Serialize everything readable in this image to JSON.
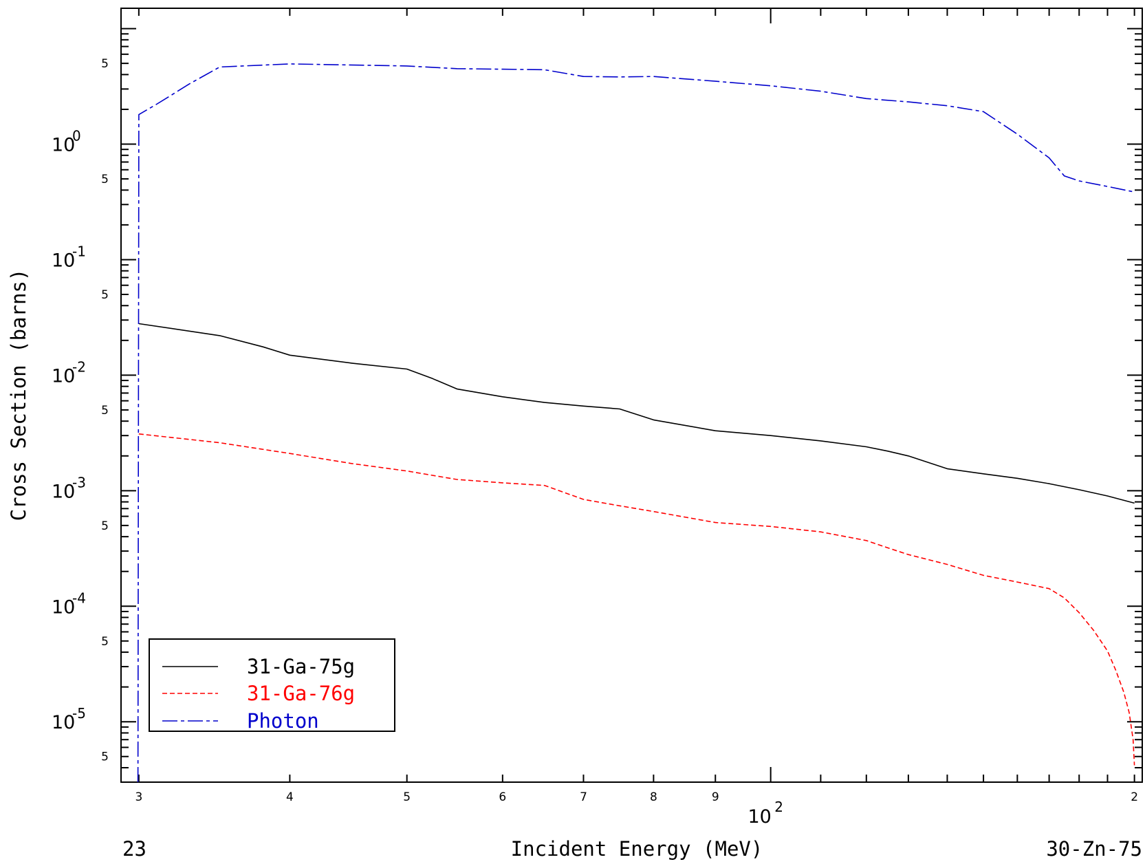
{
  "chart_data": {
    "type": "line",
    "xlabel": "Incident Energy (MeV)",
    "ylabel": "Cross Section (barns)",
    "x_scale": "log",
    "y_scale": "log",
    "xlim": [
      29,
      203
    ],
    "ylim": [
      3e-06,
      15
    ],
    "x_ticks": [
      {
        "value": 30,
        "label": "3"
      },
      {
        "value": 40,
        "label": "4"
      },
      {
        "value": 50,
        "label": "5"
      },
      {
        "value": 60,
        "label": "6"
      },
      {
        "value": 70,
        "label": "7"
      },
      {
        "value": 80,
        "label": "8"
      },
      {
        "value": 90,
        "label": "9"
      },
      {
        "value": 200,
        "label": "2"
      }
    ],
    "x_major_label": {
      "value": 100,
      "base": "10",
      "exponent": "2"
    },
    "y_major_ticks": [
      {
        "value": 1,
        "base": "10",
        "exponent": "0"
      },
      {
        "value": 0.1,
        "base": "10",
        "exponent": "-1"
      },
      {
        "value": 0.01,
        "base": "10",
        "exponent": "-2"
      },
      {
        "value": 0.001,
        "base": "10",
        "exponent": "-3"
      },
      {
        "value": 0.0001,
        "base": "10",
        "exponent": "-4"
      },
      {
        "value": 1e-05,
        "base": "10",
        "exponent": "-5"
      }
    ],
    "y_minor_labels": [
      {
        "value": 5,
        "label": "5"
      },
      {
        "value": 0.5,
        "label": "5"
      },
      {
        "value": 0.05,
        "label": "5"
      },
      {
        "value": 0.005,
        "label": "5"
      },
      {
        "value": 0.0005,
        "label": "5"
      },
      {
        "value": 5e-05,
        "label": "5"
      },
      {
        "value": 5e-06,
        "label": "5"
      }
    ],
    "series": [
      {
        "name": "31-Ga-75g",
        "color": "#000000",
        "dash": "solid",
        "x": [
          30,
          35,
          38,
          40,
          45,
          50,
          52.5,
          55,
          60,
          65,
          70,
          75,
          80,
          90,
          100,
          110,
          120,
          125,
          130,
          140,
          150,
          160,
          170,
          180,
          190,
          200
        ],
        "y": [
          0.0279,
          0.022,
          0.0176,
          0.0149,
          0.0127,
          0.0113,
          0.00935,
          0.0076,
          0.0065,
          0.0058,
          0.0054,
          0.0051,
          0.0041,
          0.0033,
          0.003,
          0.0027,
          0.0024,
          0.0022,
          0.002,
          0.00155,
          0.0014,
          0.00128,
          0.00115,
          0.00102,
          0.0009,
          0.00078
        ]
      },
      {
        "name": "31-Ga-76g",
        "color": "#ff0000",
        "dash": "dashed",
        "x": [
          30,
          35,
          40,
          45,
          50,
          55,
          60,
          65,
          70,
          75,
          80,
          90,
          100,
          110,
          120,
          125,
          130,
          140,
          150,
          160,
          170,
          175,
          180,
          185,
          190,
          193,
          196,
          198,
          199.5,
          200
        ],
        "y": [
          0.0031,
          0.0026,
          0.0021,
          0.00172,
          0.00148,
          0.00125,
          0.00117,
          0.00111,
          0.00084,
          0.00074,
          0.00066,
          0.00053,
          0.00049,
          0.00044,
          0.00037,
          0.00032,
          0.00028,
          0.00023,
          0.000185,
          0.000162,
          0.000142,
          0.000118,
          8.8e-05,
          6.2e-05,
          4.1e-05,
          2.8e-05,
          1.8e-05,
          1.2e-05,
          7e-06,
          4.2e-06
        ]
      },
      {
        "name": "Photon",
        "color": "#0000cc",
        "dash": "dashdot",
        "x": [
          29.95,
          30,
          31,
          32,
          33,
          35,
          40,
          50,
          55,
          60,
          65,
          70,
          75,
          80,
          90,
          100,
          110,
          120,
          130,
          140,
          150,
          160,
          170,
          175,
          180,
          190,
          200
        ],
        "y": [
          1e-07,
          1.8,
          2.2,
          2.7,
          3.3,
          4.65,
          4.95,
          4.75,
          4.5,
          4.45,
          4.4,
          3.85,
          3.82,
          3.85,
          3.5,
          3.2,
          2.87,
          2.48,
          2.32,
          2.15,
          1.91,
          1.22,
          0.76,
          0.53,
          0.48,
          0.43,
          0.385
        ]
      }
    ],
    "legend": {
      "placement": "bottom-left"
    },
    "grid": false
  },
  "corners": {
    "left": "23",
    "right": "30-Zn-75"
  }
}
